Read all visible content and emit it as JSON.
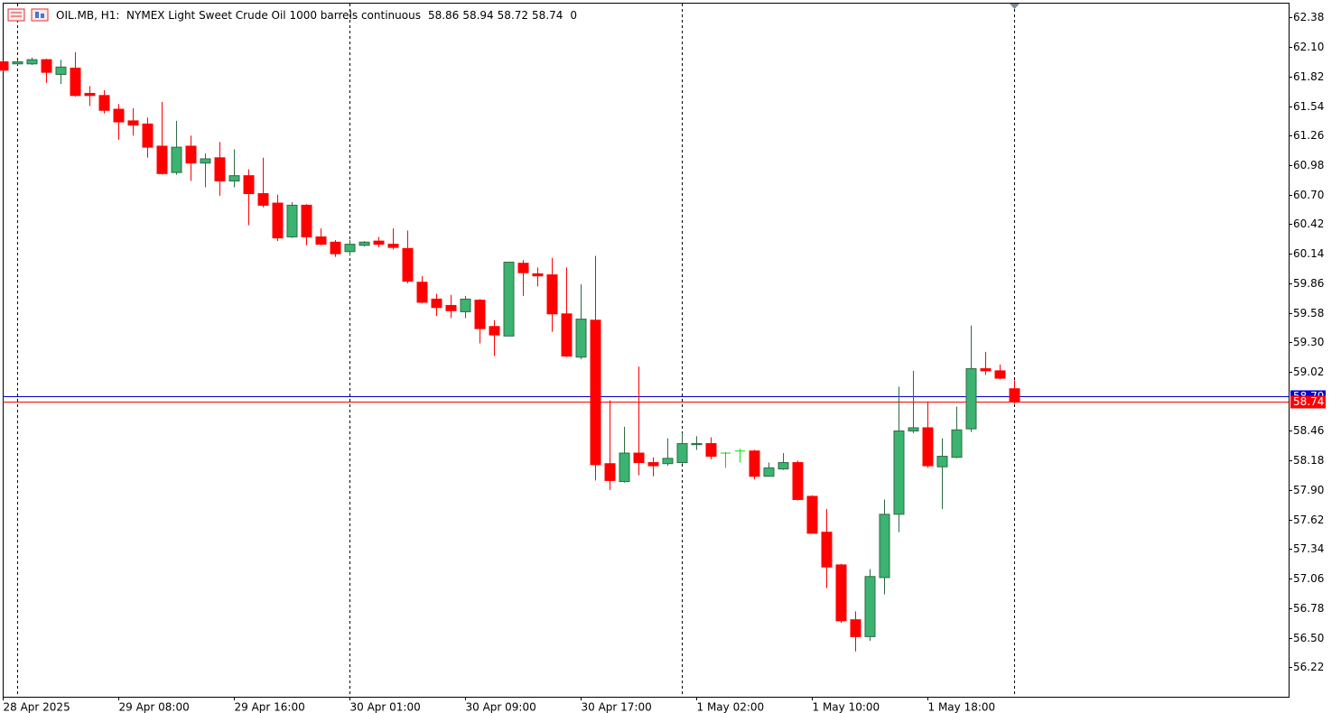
{
  "chart_data": {
    "type": "candlestick",
    "title": "OIL.MB, H1:  NYMEX Light Sweet Crude Oil 1000 barrels continuous",
    "readout_extra": 0,
    "categories": [
      "28 Apr 2025",
      null,
      null,
      null,
      null,
      null,
      null,
      null,
      "29 Apr 08:00",
      null,
      null,
      null,
      null,
      null,
      null,
      null,
      "29 Apr 16:00",
      null,
      null,
      null,
      null,
      null,
      null,
      null,
      "30 Apr 01:00",
      null,
      null,
      null,
      null,
      null,
      null,
      null,
      "30 Apr 09:00",
      null,
      null,
      null,
      null,
      null,
      null,
      null,
      "30 Apr 17:00",
      null,
      null,
      null,
      null,
      null,
      null,
      null,
      "1 May 02:00",
      null,
      null,
      null,
      null,
      null,
      null,
      null,
      "1 May 10:00",
      null,
      null,
      null,
      null,
      null,
      null,
      null,
      "1 May 18:00",
      null,
      null,
      null,
      null,
      null,
      null
    ],
    "open": [
      61.96,
      61.94,
      61.94,
      61.98,
      61.84,
      61.9,
      61.66,
      61.64,
      61.51,
      61.4,
      61.37,
      61.16,
      60.91,
      61.16,
      61.0,
      61.05,
      60.83,
      60.88,
      60.71,
      60.62,
      60.3,
      60.6,
      60.3,
      60.25,
      60.16,
      60.22,
      60.26,
      60.23,
      60.19,
      59.87,
      59.71,
      59.65,
      59.59,
      59.7,
      59.45,
      59.36,
      60.05,
      59.95,
      59.94,
      59.57,
      59.16,
      59.51,
      58.15,
      57.98,
      58.25,
      58.16,
      58.15,
      58.16,
      58.33,
      58.34,
      58.25,
      58.27,
      58.27,
      58.03,
      58.1,
      58.16,
      57.84,
      57.5,
      57.19,
      56.67,
      56.51,
      57.07,
      57.67,
      58.46,
      58.49,
      58.12,
      58.21,
      58.48,
      59.05,
      59.03,
      58.86
    ],
    "high": [
      61.97,
      61.97,
      62.0,
      61.99,
      61.98,
      62.05,
      61.73,
      61.69,
      61.56,
      61.52,
      61.43,
      61.58,
      61.4,
      61.26,
      61.09,
      61.2,
      61.13,
      60.94,
      61.05,
      60.7,
      60.63,
      60.61,
      60.38,
      60.27,
      60.27,
      60.26,
      60.3,
      60.38,
      60.36,
      59.93,
      59.76,
      59.75,
      59.74,
      59.71,
      59.51,
      60.06,
      60.08,
      60.01,
      60.1,
      60.01,
      59.85,
      60.12,
      58.75,
      58.5,
      59.07,
      58.21,
      58.39,
      58.44,
      58.41,
      58.4,
      58.26,
      58.29,
      58.28,
      58.16,
      58.25,
      58.18,
      57.85,
      57.72,
      57.2,
      56.75,
      57.15,
      57.81,
      58.88,
      59.03,
      58.74,
      58.39,
      58.69,
      59.46,
      59.21,
      59.09,
      58.94
    ],
    "low": [
      61.87,
      61.93,
      61.93,
      61.76,
      61.75,
      61.63,
      61.54,
      61.47,
      61.22,
      61.26,
      61.05,
      60.89,
      60.89,
      60.83,
      60.77,
      60.69,
      60.77,
      60.41,
      60.58,
      60.26,
      60.29,
      60.22,
      60.22,
      60.11,
      60.12,
      60.21,
      60.2,
      60.18,
      59.86,
      59.67,
      59.55,
      59.53,
      59.53,
      59.29,
      59.17,
      59.36,
      59.74,
      59.83,
      59.4,
      59.16,
      59.14,
      57.99,
      57.9,
      57.97,
      58.04,
      58.03,
      58.13,
      58.15,
      58.28,
      58.19,
      58.11,
      58.16,
      58.0,
      58.03,
      58.09,
      57.8,
      57.49,
      56.97,
      56.64,
      56.37,
      56.47,
      56.91,
      57.5,
      58.44,
      58.11,
      57.72,
      58.2,
      58.45,
      58.99,
      58.95,
      58.72
    ],
    "close": [
      61.88,
      61.96,
      61.98,
      61.86,
      61.91,
      61.64,
      61.64,
      61.5,
      61.39,
      61.36,
      61.15,
      60.9,
      61.15,
      61.0,
      61.04,
      60.83,
      60.88,
      60.71,
      60.6,
      60.29,
      60.6,
      60.3,
      60.23,
      60.14,
      60.23,
      60.25,
      60.23,
      60.2,
      59.88,
      59.68,
      59.63,
      59.6,
      59.71,
      59.43,
      59.37,
      60.06,
      59.96,
      59.93,
      59.57,
      59.17,
      59.52,
      58.14,
      57.99,
      58.25,
      58.16,
      58.13,
      58.2,
      58.34,
      58.34,
      58.22,
      58.25,
      58.27,
      58.03,
      58.11,
      58.16,
      57.81,
      57.49,
      57.17,
      56.66,
      56.51,
      57.08,
      57.67,
      58.46,
      58.49,
      58.13,
      58.22,
      58.47,
      59.05,
      59.03,
      58.96,
      58.74
    ],
    "up_color": "#3cb371",
    "down_color": "#ff0000",
    "doji_color": "#00e000",
    "bid": 58.74,
    "ask": 58.79,
    "bid_color": "#ff0000",
    "ask_color": "#0000cd",
    "ylim": [
      55.94,
      62.52
    ],
    "yticks": [
      62.38,
      {
        "value": 62.1,
        "label": "62.10"
      },
      61.82,
      61.54,
      61.26,
      60.98,
      {
        "value": 60.7,
        "label": "60.70"
      },
      60.42,
      60.14,
      59.86,
      59.58,
      {
        "value": 59.3,
        "label": "59.30"
      },
      59.02,
      58.46,
      58.18,
      {
        "value": 57.9,
        "label": "57.90"
      },
      57.62,
      57.34,
      57.06,
      56.78,
      {
        "value": 56.5,
        "label": "56.50"
      },
      56.22
    ],
    "grid": false
  }
}
